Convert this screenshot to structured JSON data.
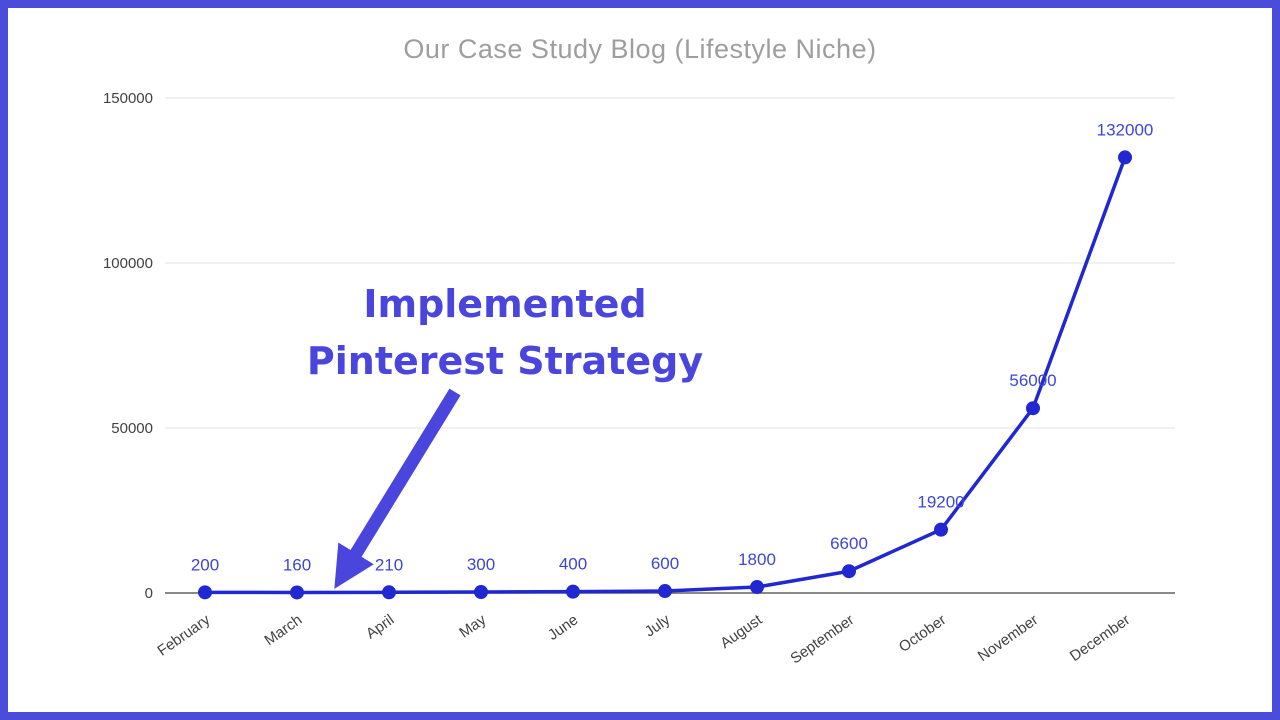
{
  "chart_data": {
    "type": "line",
    "title": "Our Case Study Blog (Lifestyle Niche)",
    "categories": [
      "February",
      "March",
      "April",
      "May",
      "June",
      "July",
      "August",
      "September",
      "October",
      "November",
      "December"
    ],
    "values": [
      200,
      160,
      210,
      300,
      400,
      600,
      1800,
      6600,
      19200,
      56000,
      132000
    ],
    "yticks": [
      0,
      50000,
      100000,
      150000
    ],
    "ylim": [
      0,
      150000
    ],
    "xlabel": "",
    "ylabel": "",
    "grid": true,
    "legend": "none",
    "annotation": {
      "line1": "Implemented",
      "line2": "Pinterest Strategy"
    },
    "colors": {
      "line": "#2127d1",
      "point": "#2127d1",
      "data_label": "#3f45d6",
      "annotation": "#4a45dd",
      "title": "#9e9e9e",
      "axis_text": "#424242",
      "gridline": "#e3e3e3",
      "baseline": "#616161",
      "frame_border": "#4c4cdb",
      "background": "#ffffff"
    }
  }
}
